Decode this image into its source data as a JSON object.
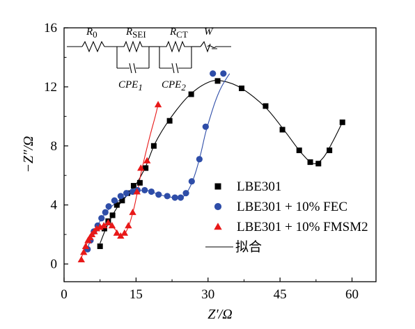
{
  "chart_data": {
    "type": "scatter",
    "xlabel": "Z′/Ω",
    "ylabel": "−Z″/Ω",
    "xlim": [
      0,
      65
    ],
    "ylim": [
      -1.2,
      16
    ],
    "xticks": [
      0,
      15,
      30,
      45,
      60
    ],
    "yticks": [
      0,
      4,
      8,
      12,
      16
    ],
    "xtick_labels": [
      "0",
      "15",
      "30",
      "45",
      "60"
    ],
    "ytick_labels": [
      "0",
      "4",
      "8",
      "12",
      "16"
    ],
    "legend_placement": "lower-right",
    "fit_label": "拟合",
    "series": [
      {
        "name": "LBE301",
        "marker": "square",
        "color": "#000000",
        "fit_color": "#000000",
        "x": [
          7.5,
          8.4,
          9.2,
          10.1,
          11.0,
          12.1,
          13.2,
          14.5,
          15.8,
          17.0,
          18.7,
          22.0,
          26.5,
          32.0,
          37.0,
          42.0,
          45.5,
          49.0,
          51.3,
          53.0,
          55.3,
          58.0
        ],
        "y": [
          1.2,
          2.4,
          2.9,
          3.3,
          4.0,
          4.3,
          4.8,
          5.3,
          5.5,
          6.5,
          8.0,
          9.7,
          11.5,
          12.4,
          11.9,
          10.7,
          9.1,
          7.7,
          6.9,
          6.8,
          7.7,
          9.6
        ],
        "fit_x": [
          7.5,
          9.0,
          11.0,
          13.0,
          15.0,
          17.0,
          19.0,
          22.0,
          26.0,
          30.0,
          33.0,
          37.0,
          42.0,
          46.0,
          49.5,
          52.0,
          54.0,
          56.0,
          58.0
        ],
        "fit_y": [
          1.4,
          2.6,
          3.8,
          4.6,
          5.4,
          6.6,
          8.2,
          9.8,
          11.4,
          12.3,
          12.4,
          11.9,
          10.6,
          9.0,
          7.5,
          6.8,
          7.2,
          8.3,
          9.6
        ]
      },
      {
        "name": "LBE301 + 10% FEC",
        "marker": "circle",
        "color": "#2E4DA8",
        "fit_color": "#2E4DA8",
        "x": [
          4.9,
          5.5,
          6.2,
          7.0,
          7.8,
          8.6,
          9.3,
          10.5,
          11.8,
          13.0,
          14.3,
          15.3,
          16.8,
          18.2,
          19.7,
          21.5,
          23.1,
          24.3,
          25.4,
          26.6,
          28.2,
          29.5,
          31.0,
          33.2
        ],
        "y": [
          1.0,
          1.6,
          2.2,
          2.6,
          3.1,
          3.5,
          3.9,
          4.3,
          4.6,
          4.8,
          4.9,
          5.0,
          5.0,
          4.9,
          4.7,
          4.6,
          4.5,
          4.5,
          4.8,
          5.6,
          7.1,
          9.3,
          12.9,
          12.9
        ],
        "fit_x": [
          4.8,
          6.0,
          7.5,
          9.0,
          11.0,
          13.0,
          15.0,
          17.0,
          19.0,
          21.0,
          23.0,
          24.5,
          25.5,
          26.5,
          27.5,
          28.5,
          29.5,
          30.5,
          31.5,
          32.5,
          33.5,
          34.5
        ],
        "fit_y": [
          1.0,
          2.0,
          2.9,
          3.6,
          4.2,
          4.6,
          4.9,
          5.0,
          4.8,
          4.6,
          4.5,
          4.5,
          4.8,
          5.4,
          6.3,
          7.5,
          8.9,
          10.0,
          11.0,
          11.8,
          12.4,
          12.9
        ]
      },
      {
        "name": "LBE301 + 10% FMSM2",
        "marker": "triangle",
        "color": "#E81818",
        "fit_color": "#E81818",
        "x": [
          3.6,
          4.1,
          4.5,
          5.0,
          5.4,
          5.8,
          6.3,
          6.8,
          7.5,
          8.3,
          9.2,
          10.0,
          11.0,
          11.8,
          12.6,
          13.4,
          14.3,
          15.2,
          16.0,
          17.3,
          19.6
        ],
        "y": [
          0.3,
          0.8,
          1.2,
          1.6,
          1.8,
          2.0,
          2.2,
          2.4,
          2.5,
          2.6,
          2.8,
          2.6,
          2.1,
          1.9,
          2.1,
          2.6,
          3.5,
          4.9,
          6.5,
          7.0,
          10.8
        ],
        "fit_x": [
          3.6,
          4.5,
          5.5,
          6.5,
          7.5,
          8.5,
          9.5,
          10.5,
          11.5,
          12.5,
          13.5,
          14.5,
          15.3,
          16.0,
          17.0,
          18.0,
          19.0,
          19.6
        ],
        "fit_y": [
          0.4,
          1.2,
          1.8,
          2.2,
          2.5,
          2.7,
          2.7,
          2.4,
          2.0,
          2.0,
          2.6,
          3.7,
          4.9,
          6.1,
          7.5,
          8.8,
          10.0,
          10.8
        ]
      }
    ],
    "circuit": {
      "elements": [
        "R0",
        "RSEI",
        "RCT",
        "W",
        "CPE1",
        "CPE2"
      ],
      "labels": {
        "R0": {
          "main": "R",
          "sub": "0"
        },
        "RSEI": {
          "main": "R",
          "sub": "SEI"
        },
        "RCT": {
          "main": "R",
          "sub": "CT"
        },
        "W": {
          "main": "W",
          "sub": ""
        },
        "CPE1": {
          "main": "CPE",
          "sub": "1"
        },
        "CPE2": {
          "main": "CPE",
          "sub": "2"
        }
      }
    }
  }
}
